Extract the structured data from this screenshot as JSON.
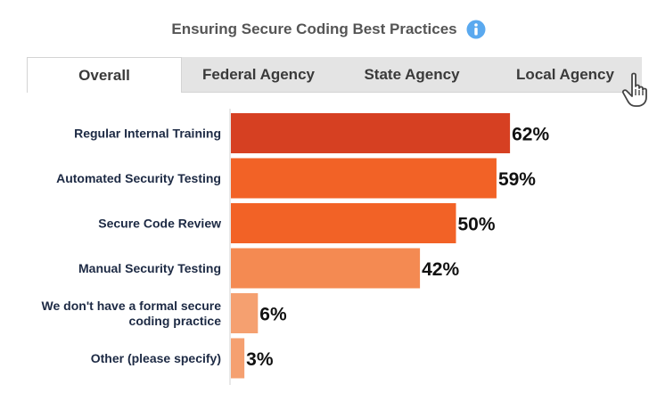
{
  "header": {
    "title": "Ensuring Secure Coding Best Practices",
    "info_icon": "info-icon"
  },
  "tabs": [
    {
      "label": "Overall",
      "active": true
    },
    {
      "label": "Federal Agency",
      "active": false
    },
    {
      "label": "State Agency",
      "active": false
    },
    {
      "label": "Local Agency",
      "active": false
    }
  ],
  "cursor_icon": "pointer-hand-icon",
  "chart_data": {
    "type": "bar",
    "orientation": "horizontal",
    "categories": [
      [
        "Regular Internal Training"
      ],
      [
        "Automated Security Testing"
      ],
      [
        "Secure Code Review"
      ],
      [
        "Manual Security Testing"
      ],
      [
        "We don't have a formal secure",
        "coding practice"
      ],
      [
        "Other (please specify)"
      ]
    ],
    "values": [
      62,
      59,
      50,
      42,
      6,
      3
    ],
    "value_labels": [
      "62%",
      "59%",
      "50%",
      "42%",
      "6%",
      "3%"
    ],
    "colors": [
      "#d64022",
      "#f26226",
      "#f26226",
      "#f48a52",
      "#f5a070",
      "#f5a070"
    ],
    "xlim": [
      0,
      100
    ],
    "grid": false,
    "legend": "none"
  }
}
